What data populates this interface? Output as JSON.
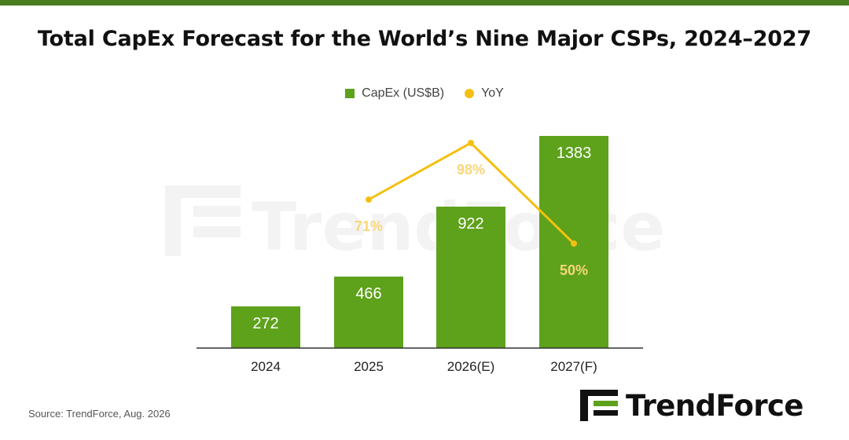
{
  "title": "Total CapEx Forecast for the World’s Nine Major CSPs, 2024–2027",
  "source": "Source: TrendForce, Aug. 2026",
  "brand": "TrendForce",
  "colors": {
    "bar": "#5ea11b",
    "line": "#f4c010",
    "line_label": "#f7d77a",
    "top_bar": "#4a7d1f"
  },
  "chart_data": {
    "type": "bar",
    "title": "Total CapEx Forecast for the World’s Nine Major CSPs, 2024–2027",
    "xlabel": "",
    "ylabel": "",
    "categories": [
      "2024",
      "2025",
      "2026(E)",
      "2027(F)"
    ],
    "series": [
      {
        "name": "CapEx (US$B)",
        "type": "bar",
        "values": [
          272,
          466,
          922,
          1383
        ],
        "labels": [
          "272",
          "466",
          "922",
          "1383"
        ]
      },
      {
        "name": "YoY",
        "type": "line",
        "values": [
          null,
          71,
          98,
          50
        ],
        "labels": [
          null,
          "71%",
          "98%",
          "50%"
        ]
      }
    ],
    "legend_position": "top-center",
    "grid": false
  }
}
